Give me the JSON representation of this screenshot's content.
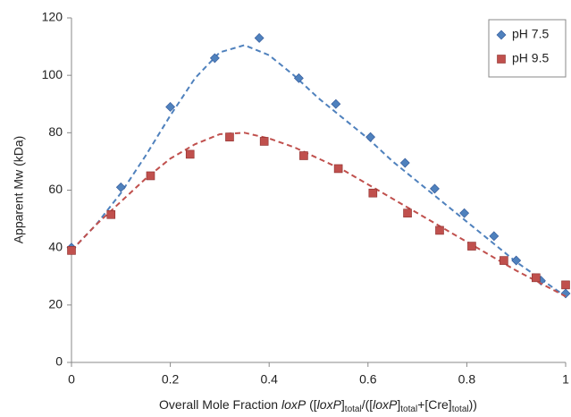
{
  "chart_data": {
    "type": "scatter",
    "y_label": "Apparent Mw (kDa)",
    "x_label": [
      "Overall Mole Fraction ",
      "loxP",
      " ([",
      "loxP",
      "]",
      "total",
      "/([",
      "loxP",
      "]",
      "total",
      "+[Cre]",
      "total",
      "))"
    ],
    "xlim": [
      0,
      1
    ],
    "xticks": [
      0,
      0.2,
      0.4,
      0.6,
      0.8,
      1
    ],
    "ylim": [
      0,
      120
    ],
    "yticks": [
      0,
      20,
      40,
      60,
      80,
      100,
      120
    ],
    "grid": false,
    "legend": "top-right",
    "series": [
      {
        "name": "pH 7.5",
        "color": "#4f81bd",
        "marker": "diamond",
        "x": [
          0,
          0.1,
          0.2,
          0.29,
          0.38,
          0.46,
          0.535,
          0.605,
          0.675,
          0.735,
          0.795,
          0.855,
          0.9,
          0.95,
          1
        ],
        "values": [
          40,
          61,
          89,
          106,
          113,
          99,
          90,
          78.5,
          69.5,
          60.5,
          52,
          44,
          35.5,
          28.5,
          24
        ],
        "fit": {
          "x": [
            0,
            0.05,
            0.1,
            0.15,
            0.2,
            0.25,
            0.3,
            0.35,
            0.4,
            0.45,
            0.5,
            0.55,
            0.6,
            0.65,
            0.7,
            0.75,
            0.8,
            0.85,
            0.9,
            0.95,
            1
          ],
          "values": [
            39,
            48,
            59,
            72,
            86,
            99,
            108,
            110.5,
            107,
            100,
            92,
            85,
            78,
            70,
            63,
            56,
            49,
            42,
            35,
            29,
            23
          ]
        }
      },
      {
        "name": "pH 9.5",
        "color": "#c0504d",
        "marker": "square",
        "x": [
          0,
          0.08,
          0.16,
          0.24,
          0.32,
          0.39,
          0.47,
          0.54,
          0.61,
          0.68,
          0.745,
          0.81,
          0.875,
          0.94,
          1
        ],
        "values": [
          39,
          51.5,
          65,
          72.5,
          78.5,
          77,
          72,
          67.5,
          59,
          52,
          46,
          40.5,
          35.5,
          29.5,
          27
        ],
        "fit": {
          "x": [
            0,
            0.05,
            0.1,
            0.15,
            0.2,
            0.25,
            0.3,
            0.35,
            0.4,
            0.45,
            0.5,
            0.55,
            0.6,
            0.65,
            0.7,
            0.75,
            0.8,
            0.85,
            0.9,
            0.95,
            1
          ],
          "values": [
            39,
            48,
            56,
            64,
            71,
            76,
            79.5,
            80,
            78,
            75,
            71,
            67,
            62,
            57,
            52,
            47,
            42,
            37,
            32,
            27.5,
            23
          ]
        }
      }
    ]
  }
}
